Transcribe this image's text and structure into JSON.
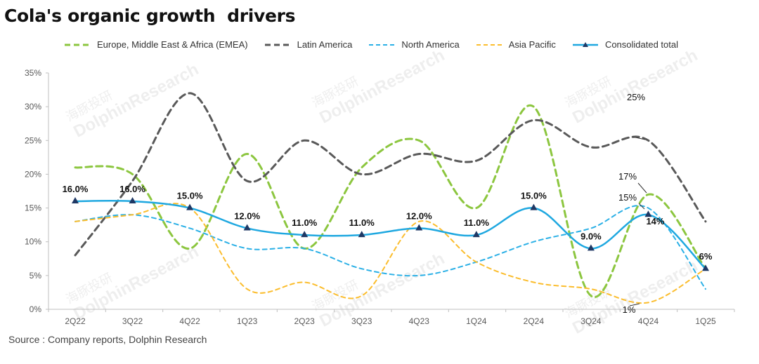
{
  "title": "Cola's organic growth  drivers",
  "source": "Source : Company reports, Dolphin Research",
  "watermark": {
    "cn": "海豚投研",
    "en": "DolphinResearch"
  },
  "chart_data": {
    "type": "line",
    "categories": [
      "2Q22",
      "3Q22",
      "4Q22",
      "1Q23",
      "2Q23",
      "3Q23",
      "4Q23",
      "1Q24",
      "2Q24",
      "3Q24",
      "4Q24",
      "1Q25"
    ],
    "ylim": [
      0,
      35
    ],
    "yticks": [
      "0%",
      "5%",
      "10%",
      "15%",
      "20%",
      "25%",
      "30%",
      "35%"
    ],
    "grid": false,
    "legend_position": "top",
    "series": [
      {
        "name": "Europe, Middle East & Africa (EMEA)",
        "color": "#8cc63f",
        "dash": "dashed",
        "values": [
          21,
          20,
          9,
          23,
          9,
          21,
          25,
          15,
          30,
          2,
          17,
          6
        ]
      },
      {
        "name": "Latin America",
        "color": "#595959",
        "dash": "dashed",
        "values": [
          8,
          19,
          32,
          19,
          25,
          20,
          23,
          22,
          28,
          24,
          25,
          13
        ]
      },
      {
        "name": "North America",
        "color": "#2bb0e6",
        "dash": "dashed",
        "values": [
          13,
          14,
          12,
          9,
          9,
          6,
          5,
          7,
          10,
          12,
          15,
          3
        ]
      },
      {
        "name": "Asia Pacific",
        "color": "#fbbd2d",
        "dash": "dashed",
        "values": [
          13,
          14,
          15,
          3,
          4,
          2,
          13,
          7,
          4,
          3,
          1,
          6
        ]
      },
      {
        "name": "Consolidated total",
        "color": "#1fa8e0",
        "dash": "solid",
        "marker": "triangle",
        "values": [
          16,
          16,
          15,
          12,
          11,
          11,
          12,
          11,
          15,
          9,
          14,
          6
        ]
      }
    ],
    "data_labels": [
      "16.0%",
      "16.0%",
      "15.0%",
      "12.0%",
      "11.0%",
      "11.0%",
      "12.0%",
      "11.0%",
      "15.0%",
      "9.0%",
      "14%",
      "6%"
    ],
    "annotations": [
      "25%",
      "17%",
      "15%",
      "1%"
    ]
  }
}
